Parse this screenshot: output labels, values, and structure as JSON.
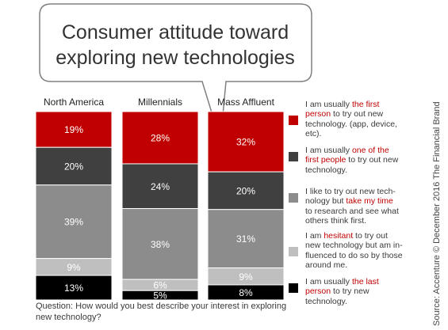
{
  "chart_data": {
    "type": "bar",
    "stacked": true,
    "normalized": true,
    "title": "Consumer attitude toward exploring new technologies",
    "title_lines": [
      "Consumer attitude toward",
      "exploring new technologies"
    ],
    "categories": [
      "North America",
      "Millennials",
      "Mass Affluent"
    ],
    "series": [
      {
        "name": "I am usually the first person to try out new technology. (app, device, etc).",
        "color": "#c00000",
        "text_color": "#ffffff",
        "values": [
          19,
          28,
          32
        ],
        "labels": [
          "19%",
          "28%",
          "32%"
        ]
      },
      {
        "name": "I am usually one of the first people to try out new technology.",
        "color": "#404040",
        "text_color": "#ffffff",
        "values": [
          20,
          24,
          20
        ],
        "labels": [
          "20%",
          "24%",
          "20%"
        ]
      },
      {
        "name": "I like to try out new technology but take my time to research and see what others think first.",
        "color": "#8c8c8c",
        "text_color": "#ffffff",
        "values": [
          39,
          38,
          31
        ],
        "labels": [
          "39%",
          "38%",
          "31%"
        ]
      },
      {
        "name": "I am hesitant to try out new technology but am influenced to do so by those around me.",
        "color": "#bfbfbf",
        "text_color": "#ffffff",
        "values": [
          9,
          6,
          9
        ],
        "labels": [
          "9%",
          "6%",
          "9%"
        ]
      },
      {
        "name": "I am usually the last person to try new technology.",
        "color": "#000000",
        "text_color": "#ffffff",
        "values": [
          13,
          5,
          8
        ],
        "labels": [
          "13%",
          "5%",
          "8%"
        ]
      }
    ],
    "legend": {
      "position": "right",
      "items": [
        {
          "color": "#c00000",
          "lines": [
            [
              {
                "t": "I am usually "
              },
              {
                "t": "the first",
                "hl": true
              }
            ],
            [
              {
                "t": "person",
                "hl": true
              },
              {
                "t": " to try out new"
              }
            ],
            [
              {
                "t": "technology. (app, device,"
              }
            ],
            [
              {
                "t": "etc)."
              }
            ]
          ]
        },
        {
          "color": "#404040",
          "lines": [
            [
              {
                "t": "I am usually "
              },
              {
                "t": "one of the",
                "hl": true
              }
            ],
            [
              {
                "t": "first people",
                "hl": true
              },
              {
                "t": " to try out new"
              }
            ],
            [
              {
                "t": "technology."
              }
            ]
          ]
        },
        {
          "color": "#8c8c8c",
          "lines": [
            [
              {
                "t": "I like to try out new tech-"
              }
            ],
            [
              {
                "t": "nology but "
              },
              {
                "t": "take my time",
                "hl": true
              }
            ],
            [
              {
                "t": "to research and see what"
              }
            ],
            [
              {
                "t": "others think first."
              }
            ]
          ]
        },
        {
          "color": "#bfbfbf",
          "lines": [
            [
              {
                "t": "I am "
              },
              {
                "t": "hesitant",
                "hl": true
              },
              {
                "t": " to try out"
              }
            ],
            [
              {
                "t": "new technology but am in-"
              }
            ],
            [
              {
                "t": "fluenced to do so by those"
              }
            ],
            [
              {
                "t": "around me."
              }
            ]
          ]
        },
        {
          "color": "#000000",
          "lines": [
            [
              {
                "t": "I am usually "
              },
              {
                "t": "the last",
                "hl": true
              }
            ],
            [
              {
                "t": "person",
                "hl": true
              },
              {
                "t": " to try new"
              }
            ],
            [
              {
                "t": "technology."
              }
            ]
          ]
        }
      ]
    },
    "question": "Question: How would you best describe your interest in exploring new technology?",
    "source": "Source: Accenture © December 2016 The Financial Brand",
    "colors": {
      "highlight": "#c00000",
      "bubble_border": "#808080",
      "text": "#3a3a3a"
    }
  }
}
